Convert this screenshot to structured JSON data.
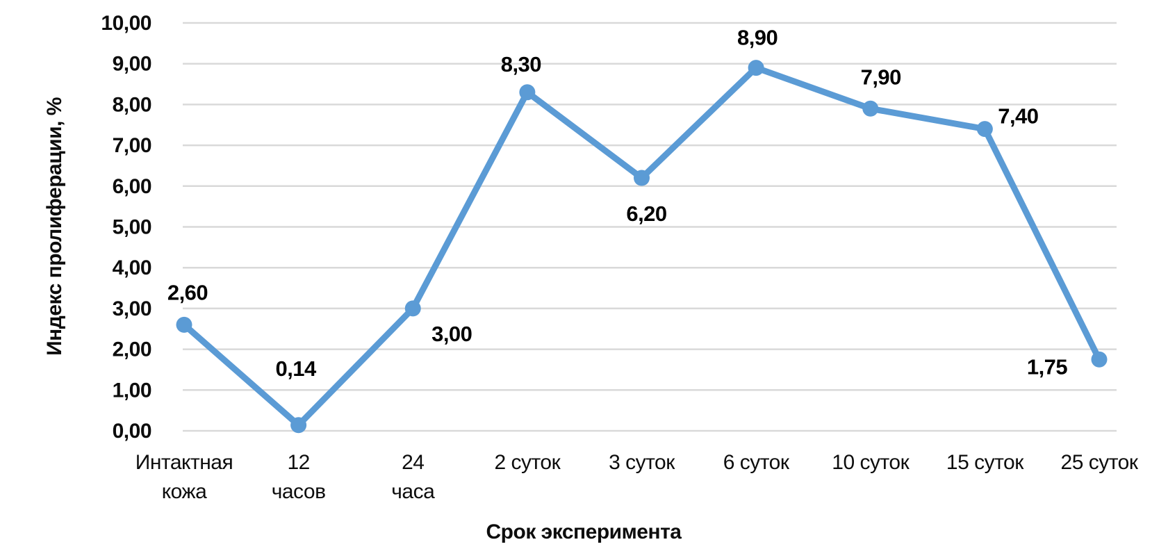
{
  "chart_data": {
    "type": "line",
    "title": "",
    "xlabel": "Срок эксперимента",
    "ylabel": "Индекс пролиферации, %",
    "categories": [
      "Интактная\nкожа",
      "12\nчасов",
      "24\nчаса",
      "2 суток",
      "3 суток",
      "6 суток",
      "10 суток",
      "15 суток",
      "25 суток"
    ],
    "series": [
      {
        "name": "Индекс пролиферации",
        "values": [
          2.6,
          0.14,
          3.0,
          8.3,
          6.2,
          8.9,
          7.9,
          7.4,
          1.75
        ],
        "point_labels": [
          "2,60",
          "0,14",
          "3,00",
          "8,30",
          "6,20",
          "8,90",
          "7,90",
          "7,40",
          "1,75"
        ],
        "label_offsets": [
          [
            5,
            -36
          ],
          [
            -4,
            -71
          ],
          [
            56,
            47
          ],
          [
            -9,
            -30
          ],
          [
            7,
            62
          ],
          [
            2,
            -33
          ],
          [
            15,
            -35
          ],
          [
            48,
            -8
          ],
          [
            -75,
            21
          ]
        ]
      }
    ],
    "ylim": [
      0,
      10
    ],
    "ytick_labels": [
      "0,00",
      "1,00",
      "2,00",
      "3,00",
      "4,00",
      "5,00",
      "6,00",
      "7,00",
      "8,00",
      "9,00",
      "10,00"
    ],
    "grid": true,
    "legend": false,
    "colors": {
      "line": "#5B9BD5",
      "marker": "#5B9BD5",
      "gridline": "#D9D9D9",
      "text": "#0d0d0d"
    }
  }
}
